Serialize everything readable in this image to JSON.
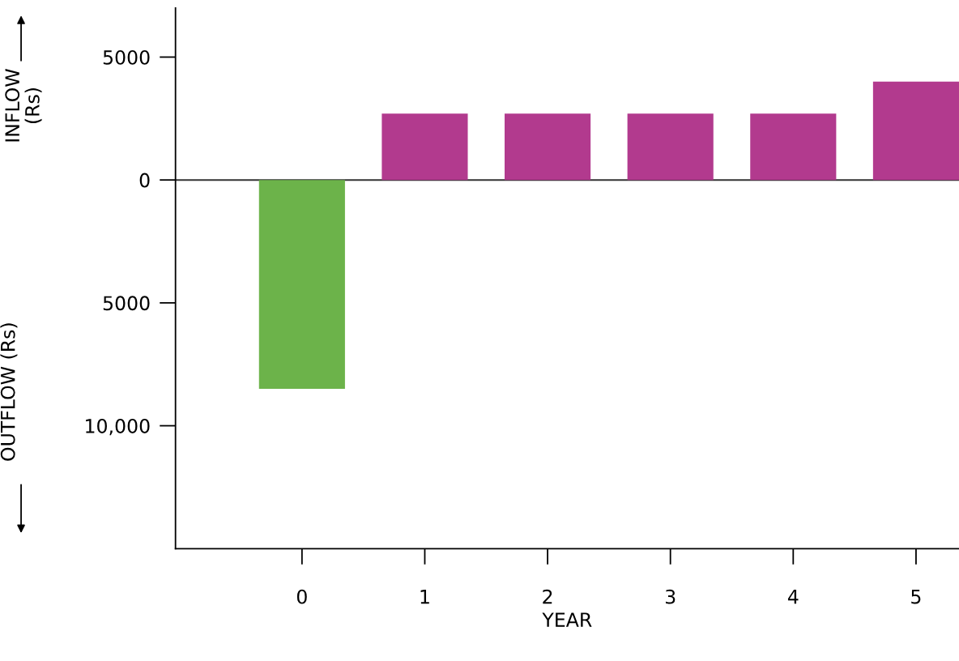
{
  "chart_data": {
    "type": "bar",
    "x": [
      0,
      1,
      2,
      3,
      4,
      5
    ],
    "values": [
      -8500,
      2700,
      2700,
      2700,
      2700,
      4000
    ],
    "colors": [
      "#6cb34a",
      "#b23a8e",
      "#b23a8e",
      "#b23a8e",
      "#b23a8e",
      "#b23a8e"
    ],
    "xlabel": "YEAR",
    "ylabel": "OUTFLOW (Rs)",
    "annotations": [
      "INFLOW\n(Rs)"
    ],
    "xlim": [
      -1.03,
      5.35
    ],
    "xticks": [
      0,
      1,
      2,
      3,
      4,
      5
    ],
    "ylim": [
      -15000,
      7000
    ],
    "yticks": [
      {
        "value": -10000,
        "label": "10,000"
      },
      {
        "value": -5000,
        "label": "5000"
      },
      0,
      5000
    ],
    "ref_lines": [
      {
        "axis": "y",
        "value": 0,
        "color": "#333333"
      }
    ],
    "grid": false,
    "legend": false
  }
}
